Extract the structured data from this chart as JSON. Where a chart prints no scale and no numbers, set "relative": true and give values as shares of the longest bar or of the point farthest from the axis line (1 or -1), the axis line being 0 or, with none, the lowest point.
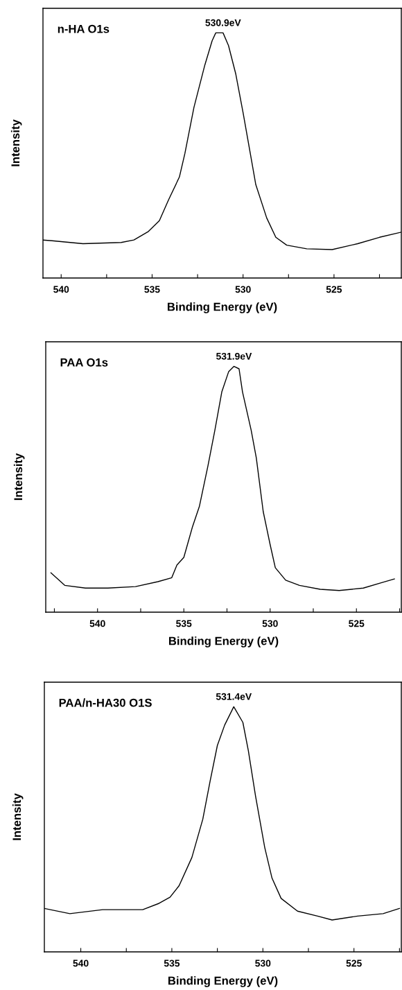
{
  "chart_data": [
    {
      "type": "line",
      "title": "n-HA O1s",
      "xlabel": "Binding Energy (eV)",
      "ylabel": "Intensity",
      "relative": true,
      "tick_labels": "x",
      "grid": false,
      "legend": false,
      "annotations": [
        "530.9eV"
      ],
      "xlim": [
        541.0,
        521.3
      ],
      "xticks": [
        540,
        {
          "value": 537.5,
          "label": null
        },
        535,
        {
          "value": 532.5,
          "label": null
        },
        530,
        {
          "value": 527.5,
          "label": null
        },
        525,
        {
          "value": 522.5,
          "label": null
        }
      ],
      "series": [
        {
          "color": "#000000",
          "x": [
            541.0,
            540.5,
            538.8,
            536.7,
            536.0,
            535.2,
            534.6,
            534.1,
            533.5,
            533.2,
            532.7,
            532.1,
            531.7,
            531.5,
            531.1,
            530.8,
            530.4,
            530.0,
            529.6,
            529.3,
            528.7,
            528.2,
            527.6,
            526.5,
            525.1,
            523.7,
            522.5,
            521.3
          ],
          "values": [
            0.155,
            0.152,
            0.14,
            0.145,
            0.155,
            0.19,
            0.234,
            0.318,
            0.412,
            0.507,
            0.696,
            0.869,
            0.968,
            1.0,
            1.0,
            0.948,
            0.832,
            0.675,
            0.507,
            0.381,
            0.245,
            0.166,
            0.134,
            0.119,
            0.116,
            0.14,
            0.166,
            0.187
          ]
        }
      ]
    },
    {
      "type": "line",
      "title": "PAA O1s",
      "xlabel": "Binding Energy (eV)",
      "ylabel": "Intensity",
      "relative": true,
      "tick_labels": "x",
      "grid": false,
      "legend": false,
      "annotations": [
        "531.9eV"
      ],
      "xlim": [
        543.0,
        522.4
      ],
      "xticks": [
        {
          "value": 542.5,
          "label": null
        },
        540,
        {
          "value": 537.5,
          "label": null
        },
        535,
        {
          "value": 532.5,
          "label": null
        },
        530,
        {
          "value": 527.5,
          "label": null
        },
        525,
        {
          "value": 522.5,
          "label": null
        }
      ],
      "series": [
        {
          "color": "#000000",
          "x": [
            542.7,
            541.9,
            540.7,
            539.4,
            537.8,
            536.5,
            535.7,
            535.4,
            535.0,
            534.5,
            534.1,
            533.6,
            533.2,
            532.8,
            532.4,
            532.1,
            531.8,
            531.6,
            531.1,
            530.8,
            530.4,
            530.0,
            529.7,
            529.1,
            528.3,
            527.1,
            526.0,
            524.6,
            523.6,
            522.8
          ],
          "values": [
            0.16,
            0.109,
            0.098,
            0.098,
            0.104,
            0.124,
            0.14,
            0.192,
            0.223,
            0.347,
            0.43,
            0.596,
            0.741,
            0.896,
            0.979,
            1.0,
            0.99,
            0.896,
            0.741,
            0.627,
            0.409,
            0.275,
            0.181,
            0.13,
            0.109,
            0.093,
            0.088,
            0.098,
            0.119,
            0.135
          ]
        }
      ]
    },
    {
      "type": "line",
      "title": "PAA/n-HA30 O1S",
      "xlabel": "Binding Energy (eV)",
      "ylabel": "Intensity",
      "relative": true,
      "tick_labels": "x",
      "grid": false,
      "legend": false,
      "annotations": [
        "531.4eV"
      ],
      "xlim": [
        542.0,
        522.4
      ],
      "xticks": [
        540,
        {
          "value": 537.5,
          "label": null
        },
        535,
        {
          "value": 532.5,
          "label": null
        },
        530,
        {
          "value": 527.5,
          "label": null
        },
        525,
        {
          "value": 522.5,
          "label": null
        }
      ],
      "series": [
        {
          "color": "#000000",
          "x": [
            542.0,
            540.6,
            538.8,
            536.6,
            535.7,
            535.1,
            534.6,
            533.9,
            533.3,
            532.9,
            532.5,
            532.1,
            531.6,
            531.1,
            530.8,
            530.4,
            529.9,
            529.5,
            529.0,
            528.1,
            527.0,
            526.2,
            524.8,
            523.4,
            522.5
          ],
          "values": [
            0.177,
            0.156,
            0.172,
            0.172,
            0.198,
            0.223,
            0.27,
            0.385,
            0.541,
            0.696,
            0.842,
            0.925,
            1.0,
            0.936,
            0.821,
            0.634,
            0.426,
            0.301,
            0.218,
            0.166,
            0.146,
            0.13,
            0.146,
            0.156,
            0.177
          ]
        }
      ]
    }
  ]
}
